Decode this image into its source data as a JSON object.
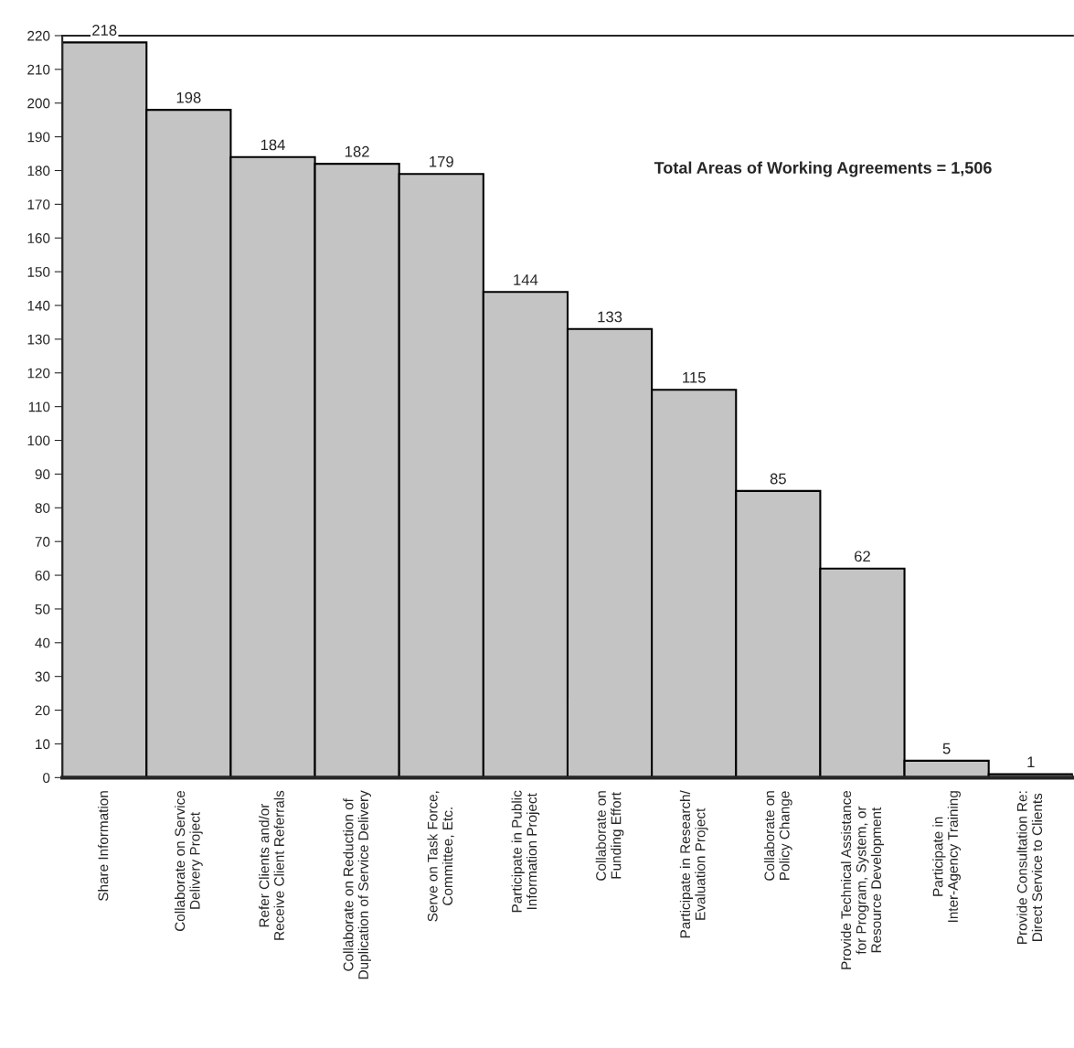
{
  "chart_data": {
    "type": "bar",
    "categories": [
      "Share Information",
      "Collaborate on Service\nDelivery Project",
      "Refer Clients and/or\nReceive Client Referrals",
      "Collaborate on Reduction of\nDuplication of Service Delivery",
      "Serve on Task Force,\nCommittee, Etc.",
      "Participate in Public\nInformation Project",
      "Collaborate on\nFunding Effort",
      "Participate in Research/\nEvaluation Project",
      "Collaborate on\nPolicy Change",
      "Provide Technical Assistance\nfor Program, System, or\nResource Development",
      "Participate in\nInter-Agency Training",
      "Provide Consultation Re:\nDirect Service to Clients"
    ],
    "values": [
      218,
      198,
      184,
      182,
      179,
      144,
      133,
      115,
      85,
      62,
      5,
      1
    ],
    "color": "#c4c4c4",
    "data_labels": true,
    "ylim": [
      0,
      220
    ],
    "yticks": [
      0,
      10,
      20,
      30,
      40,
      50,
      60,
      70,
      80,
      90,
      100,
      110,
      120,
      130,
      140,
      150,
      160,
      170,
      180,
      190,
      200,
      210,
      220
    ],
    "grid": false,
    "annotations": [
      "Total Areas of Working Agreements = 1,506"
    ]
  }
}
